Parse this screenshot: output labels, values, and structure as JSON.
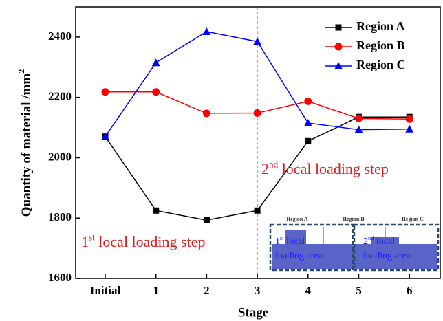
{
  "chart_data": {
    "type": "line",
    "y_label": "Quantity of material /mm",
    "y_label_sup": "2",
    "x_label": "Stage",
    "categories": [
      "Initial",
      "1",
      "2",
      "3",
      "4",
      "5",
      "6"
    ],
    "series": [
      {
        "name": "Region A",
        "color": "#000000",
        "marker": "square",
        "values": [
          2070,
          1825,
          1793,
          1825,
          2055,
          2135,
          2135
        ]
      },
      {
        "name": "Region B",
        "color": "#ff0000",
        "marker": "circle",
        "values": [
          2218,
          2218,
          2147,
          2148,
          2187,
          2130,
          2128
        ]
      },
      {
        "name": "Region C",
        "color": "#0000ff",
        "marker": "triangle",
        "values": [
          2070,
          2315,
          2418,
          2385,
          2115,
          2093,
          2095
        ]
      }
    ],
    "ylim": [
      1600,
      2500
    ],
    "yticks": [
      1600,
      1800,
      2000,
      2200,
      2400
    ],
    "legend": "upper right",
    "annotations": [
      {
        "number": "1",
        "sup": "st",
        "text": " local loading step"
      },
      {
        "number": "2",
        "sup": "nd",
        "text": " local loading step"
      }
    ],
    "inset": {
      "regions": [
        "Region A",
        "Region B",
        "Region C"
      ],
      "areas": [
        {
          "number": "1",
          "sup": "st",
          "line1": " local",
          "line2": "loading area"
        },
        {
          "number": "2",
          "sup": "nd",
          "line1": " local",
          "line2": "loading area"
        }
      ]
    }
  }
}
